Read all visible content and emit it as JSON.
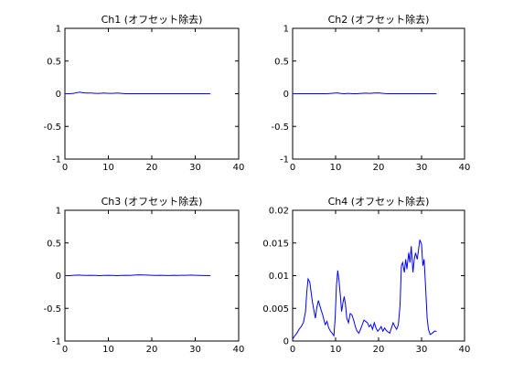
{
  "chart_data": [
    {
      "type": "line",
      "title": "Ch1 (オフセット除去)",
      "xlim": [
        0,
        40
      ],
      "ylim": [
        -1,
        1
      ],
      "xticks": [
        0,
        10,
        20,
        30,
        40
      ],
      "yticks": [
        -1,
        -0.5,
        0,
        0.5,
        1
      ],
      "xtick_labels": [
        "0",
        "10",
        "20",
        "30",
        "40"
      ],
      "ytick_labels": [
        "-1",
        "-0.5",
        "0",
        "0.5",
        "1"
      ],
      "color": "#0000ff",
      "x": [
        0,
        1,
        2,
        3,
        3.5,
        4,
        5,
        6,
        7,
        8,
        9,
        10,
        11,
        12,
        13,
        14,
        15,
        16,
        17,
        18,
        19,
        20,
        21,
        22,
        23,
        24,
        25,
        26,
        27,
        28,
        29,
        30,
        31,
        32,
        33.5
      ],
      "y": [
        0,
        0,
        0.005,
        0.02,
        0.025,
        0.015,
        0.01,
        0.01,
        0.005,
        0.005,
        0.01,
        0.005,
        0.005,
        0.01,
        0.005,
        0,
        0,
        0,
        0,
        0,
        0,
        0,
        0,
        0,
        0,
        0,
        0,
        0,
        0,
        0,
        0,
        0,
        0,
        0,
        0
      ]
    },
    {
      "type": "line",
      "title": "Ch2 (オフセット除去)",
      "xlim": [
        0,
        40
      ],
      "ylim": [
        -1,
        1
      ],
      "xticks": [
        0,
        10,
        20,
        30,
        40
      ],
      "yticks": [
        -1,
        -0.5,
        0,
        0.5,
        1
      ],
      "xtick_labels": [
        "0",
        "10",
        "20",
        "30",
        "40"
      ],
      "ytick_labels": [
        "-1",
        "-0.5",
        "0",
        "0.5",
        "1"
      ],
      "color": "#0000ff",
      "x": [
        0,
        2,
        4,
        6,
        8,
        9,
        10,
        10.5,
        11,
        12,
        13,
        14,
        15,
        16,
        17,
        18,
        19,
        20,
        21,
        22,
        24,
        26,
        28,
        30,
        32,
        33.5
      ],
      "y": [
        0,
        0,
        0,
        0,
        0,
        0.005,
        0.01,
        0.012,
        0.005,
        0,
        0.005,
        0,
        0,
        0.005,
        0.008,
        0.005,
        0.01,
        0.012,
        0.005,
        0,
        0,
        0,
        0,
        0,
        0,
        0
      ]
    },
    {
      "type": "line",
      "title": "Ch3 (オフセット除去)",
      "xlim": [
        0,
        40
      ],
      "ylim": [
        -1,
        1
      ],
      "xticks": [
        0,
        10,
        20,
        30,
        40
      ],
      "yticks": [
        -1,
        -0.5,
        0,
        0.5,
        1
      ],
      "xtick_labels": [
        "0",
        "10",
        "20",
        "30",
        "40"
      ],
      "ytick_labels": [
        "-1",
        "-0.5",
        "0",
        "0.5",
        "1"
      ],
      "color": "#0000ff",
      "x": [
        0,
        1,
        2,
        3,
        4,
        5,
        6,
        7,
        8,
        9,
        10,
        11,
        12,
        13,
        14,
        15,
        16,
        17,
        18,
        19,
        20,
        21,
        22,
        23,
        24,
        25,
        26,
        27,
        28,
        29,
        30,
        31,
        32,
        33.5
      ],
      "y": [
        0,
        0,
        0.005,
        0.008,
        0.005,
        0.003,
        0.005,
        0.003,
        0,
        0.003,
        0.005,
        0.003,
        0,
        0.003,
        0.005,
        0.003,
        0.008,
        0.012,
        0.01,
        0.008,
        0.005,
        0.003,
        0.005,
        0.003,
        0.002,
        0.005,
        0.003,
        0.005,
        0.005,
        0.008,
        0.005,
        0.003,
        0.002,
        0
      ]
    },
    {
      "type": "line",
      "title": "Ch4 (オフセット除去)",
      "xlim": [
        0,
        40
      ],
      "ylim": [
        0,
        0.02
      ],
      "xticks": [
        0,
        10,
        20,
        30,
        40
      ],
      "yticks": [
        0,
        0.005,
        0.01,
        0.015,
        0.02
      ],
      "xtick_labels": [
        "0",
        "10",
        "20",
        "30",
        "40"
      ],
      "ytick_labels": [
        "0",
        "0.005",
        "0.01",
        "0.015",
        "0.02"
      ],
      "color": "#0000ff",
      "x": [
        0,
        0.5,
        1,
        1.5,
        2,
        2.5,
        3,
        3.3,
        3.6,
        4,
        4.3,
        4.6,
        5,
        5.3,
        5.6,
        6,
        6.3,
        6.6,
        7,
        7.3,
        7.6,
        8,
        8.4,
        8.8,
        9.2,
        9.6,
        9.9,
        10.2,
        10.5,
        10.8,
        11.1,
        11.4,
        11.7,
        12,
        12.3,
        12.6,
        13,
        13.4,
        13.8,
        14.2,
        14.6,
        15,
        15.4,
        15.8,
        16.2,
        16.6,
        17,
        17.4,
        17.8,
        18.2,
        18.6,
        19,
        19.4,
        19.8,
        20.2,
        20.6,
        21,
        21.4,
        21.8,
        22.2,
        22.6,
        23,
        23.4,
        23.8,
        24.2,
        24.6,
        25,
        25.3,
        25.6,
        26,
        26.3,
        26.6,
        27,
        27.3,
        27.6,
        28,
        28.3,
        28.6,
        29,
        29.3,
        29.6,
        30,
        30.3,
        30.6,
        31,
        31.3,
        31.6,
        32,
        32.5,
        33,
        33.5
      ],
      "y": [
        0.0003,
        0.0008,
        0.0012,
        0.0018,
        0.0022,
        0.0028,
        0.0045,
        0.0075,
        0.0095,
        0.009,
        0.0075,
        0.006,
        0.0045,
        0.0035,
        0.005,
        0.0062,
        0.0055,
        0.0048,
        0.004,
        0.0032,
        0.0025,
        0.003,
        0.002,
        0.0015,
        0.0012,
        0.0008,
        0.0035,
        0.0085,
        0.0108,
        0.0092,
        0.007,
        0.0045,
        0.0058,
        0.0068,
        0.0056,
        0.0035,
        0.0028,
        0.0042,
        0.004,
        0.0032,
        0.0022,
        0.0015,
        0.0012,
        0.0018,
        0.0025,
        0.0032,
        0.003,
        0.0028,
        0.0022,
        0.0025,
        0.0018,
        0.0028,
        0.002,
        0.0015,
        0.0018,
        0.0022,
        0.0015,
        0.002,
        0.0016,
        0.0014,
        0.0012,
        0.002,
        0.0028,
        0.0022,
        0.0018,
        0.0025,
        0.0055,
        0.0115,
        0.012,
        0.0105,
        0.0125,
        0.011,
        0.0135,
        0.012,
        0.0145,
        0.0105,
        0.0125,
        0.0135,
        0.0125,
        0.014,
        0.0155,
        0.0148,
        0.0115,
        0.0125,
        0.0075,
        0.0035,
        0.0018,
        0.001,
        0.0012,
        0.0015,
        0.0015
      ]
    }
  ]
}
